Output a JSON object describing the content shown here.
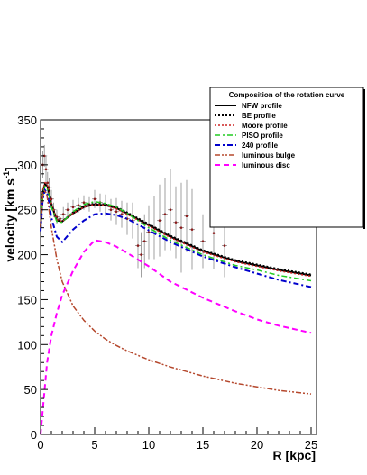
{
  "chart_data": {
    "type": "line",
    "title": "",
    "xlabel": "R [kpc]",
    "ylabel_main": "velocity [km s",
    "ylabel_sup": "-1",
    "ylabel_close": "]",
    "xlim": [
      0,
      25.5
    ],
    "ylim": [
      0,
      350
    ],
    "x_ticks": [
      0,
      5,
      10,
      15,
      20,
      25
    ],
    "y_ticks": [
      0,
      50,
      100,
      150,
      200,
      250,
      300,
      350
    ],
    "grid": false,
    "legend": {
      "title": "Composition of the rotation curve",
      "placement": "top-right"
    },
    "series": [
      {
        "name": "NFW profile",
        "color": "#000000",
        "style": "solid",
        "width": 2,
        "x": [
          0.0,
          0.2,
          0.4,
          0.6,
          0.8,
          1.0,
          1.5,
          2.0,
          3,
          4,
          5,
          6,
          7,
          8,
          10,
          12,
          15,
          18,
          20,
          22,
          25
        ],
        "y": [
          230,
          268,
          278,
          277,
          268,
          256,
          238,
          237,
          246,
          253,
          256,
          255,
          252,
          246,
          233,
          220,
          204,
          193,
          188,
          183,
          177
        ]
      },
      {
        "name": "BE profile",
        "color": "#000000",
        "style": "dotted",
        "width": 2,
        "x": [
          0.0,
          0.2,
          0.4,
          0.6,
          0.8,
          1.0,
          1.5,
          2.0,
          3,
          4,
          5,
          6,
          7,
          8,
          10,
          12,
          15,
          18,
          20,
          22,
          25
        ],
        "y": [
          231,
          270,
          279,
          278,
          269,
          257,
          239,
          237,
          247,
          254,
          257,
          256,
          253,
          247,
          234,
          221,
          205,
          194,
          189,
          184,
          178
        ]
      },
      {
        "name": "Moore profile",
        "color": "#cc2222",
        "style": "dotted",
        "width": 1.5,
        "x": [
          0.0,
          0.2,
          0.4,
          0.6,
          0.8,
          1.0,
          1.5,
          2.0,
          3,
          4,
          5,
          6,
          7,
          8,
          10,
          12,
          15,
          18,
          20,
          22,
          25
        ],
        "y": [
          232,
          272,
          280,
          279,
          270,
          257,
          239,
          237,
          246,
          253,
          256,
          255,
          251,
          245,
          232,
          219,
          203,
          192,
          187,
          182,
          176
        ]
      },
      {
        "name": "PISO profile",
        "color": "#22cc22",
        "style": "dashdot",
        "width": 1.5,
        "x": [
          0.0,
          0.2,
          0.4,
          0.6,
          0.8,
          1.0,
          1.5,
          2.0,
          3,
          4,
          5,
          6,
          7,
          8,
          10,
          12,
          15,
          18,
          20,
          22,
          25
        ],
        "y": [
          229,
          266,
          276,
          274,
          265,
          253,
          237,
          236,
          248,
          256,
          259,
          257,
          253,
          246,
          230,
          216,
          200,
          188,
          183,
          177,
          171
        ]
      },
      {
        "name": "240 profile",
        "color": "#0000cc",
        "style": "dashdot",
        "width": 2,
        "x": [
          0.0,
          0.2,
          0.4,
          0.6,
          0.8,
          1.0,
          1.5,
          2.0,
          3,
          4,
          5,
          6,
          7,
          8,
          10,
          12,
          15,
          18,
          20,
          22,
          25
        ],
        "y": [
          226,
          262,
          272,
          269,
          257,
          241,
          220,
          214,
          228,
          238,
          245,
          246,
          244,
          240,
          227,
          214,
          198,
          186,
          179,
          172,
          164
        ]
      },
      {
        "name": "luminous bulge",
        "color": "#b5482d",
        "style": "dashdotdot",
        "width": 1.5,
        "x": [
          0.0,
          0.2,
          0.4,
          0.6,
          0.8,
          1.0,
          1.5,
          2.0,
          3,
          4,
          5,
          6,
          7,
          8,
          10,
          12,
          15,
          18,
          20,
          22,
          25
        ],
        "y": [
          230,
          265,
          272,
          265,
          248,
          230,
          195,
          170,
          143,
          127,
          115,
          106,
          99,
          93,
          83,
          75,
          65,
          57,
          53,
          49,
          45
        ]
      },
      {
        "name": "luminous disc",
        "color": "#ff00ff",
        "style": "dashed",
        "width": 2,
        "x": [
          0.0,
          0.3,
          0.6,
          1.0,
          1.5,
          2,
          3,
          4,
          5,
          6,
          7,
          8,
          10,
          12,
          15,
          18,
          20,
          22,
          25
        ],
        "y": [
          0,
          40,
          80,
          110,
          135,
          155,
          182,
          203,
          216,
          214,
          209,
          202,
          187,
          170,
          152,
          137,
          128,
          121,
          113
        ]
      }
    ],
    "observations": {
      "name": "data points with error bars",
      "color": "#8b1a1a",
      "x": [
        0.2,
        0.35,
        0.5,
        0.65,
        0.8,
        1.0,
        1.2,
        1.5,
        1.8,
        2.1,
        2.5,
        3.0,
        3.5,
        4.0,
        4.5,
        5.0,
        5.5,
        6.0,
        6.5,
        7.0,
        7.5,
        8.0,
        8.5,
        9.0,
        9.3,
        9.6,
        10.0,
        10.5,
        11.0,
        11.5,
        12.0,
        12.5,
        13.0,
        13.5,
        14.0,
        15.0,
        16.0,
        17.0
      ],
      "y": [
        300,
        310,
        295,
        280,
        275,
        262,
        250,
        242,
        240,
        245,
        250,
        253,
        255,
        258,
        256,
        262,
        258,
        255,
        250,
        248,
        245,
        240,
        238,
        210,
        200,
        215,
        225,
        230,
        238,
        245,
        250,
        236,
        230,
        243,
        228,
        215,
        224,
        210
      ],
      "err": [
        15,
        12,
        15,
        12,
        10,
        10,
        8,
        8,
        8,
        8,
        8,
        8,
        8,
        8,
        8,
        10,
        10,
        12,
        12,
        15,
        15,
        18,
        20,
        25,
        25,
        30,
        30,
        35,
        40,
        40,
        45,
        40,
        50,
        40,
        45,
        30,
        40,
        35
      ]
    }
  }
}
